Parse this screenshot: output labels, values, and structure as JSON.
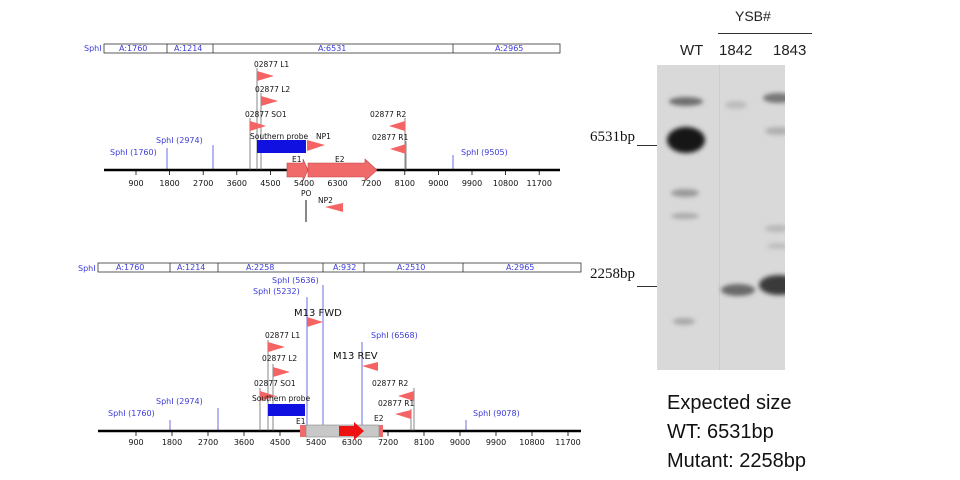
{
  "map1": {
    "restriction_label": "SphI",
    "segments": [
      "A:1760",
      "A:1214",
      "A:6531",
      "A:2965"
    ],
    "axis_ticks": [
      "900",
      "1800",
      "2700",
      "3600",
      "4500",
      "5400",
      "6300",
      "7200",
      "8100",
      "9000",
      "9900",
      "10800",
      "11700"
    ],
    "site_labels": [
      "SphI (1760)",
      "SphI (2974)",
      "SphI (9505)"
    ],
    "primers": [
      "02877 L1",
      "02877 L2",
      "02877 SO1",
      "02877 R2",
      "02877 R1",
      "NP1",
      "NP2",
      "PO"
    ],
    "features": [
      "Southern probe",
      "E1",
      "E2"
    ]
  },
  "map2": {
    "restriction_label": "SphI",
    "segments": [
      "A:1760",
      "A:1214",
      "A:2258",
      "A:932",
      "A:2510",
      "A:2965"
    ],
    "axis_ticks": [
      "900",
      "1800",
      "2700",
      "3600",
      "4500",
      "5400",
      "6300",
      "7200",
      "8100",
      "9000",
      "9900",
      "10800",
      "11700"
    ],
    "site_labels": [
      "SphI (1760)",
      "SphI (2974)",
      "SphI (5232)",
      "SphI (5636)",
      "SphI (6568)",
      "SphI (9078)"
    ],
    "primers": [
      "02877 L1",
      "02877 L2",
      "02877 SO1",
      "02877 R2",
      "02877 R1",
      "M13 FWD",
      "M13 REV"
    ],
    "features": [
      "Southern probe",
      "E1",
      "E2"
    ]
  },
  "gel": {
    "group_label": "YSB#",
    "lanes": [
      "WT",
      "1842",
      "1843"
    ],
    "markers": [
      "6531bp",
      "2258bp"
    ]
  },
  "expected": {
    "heading": "Expected size",
    "wt": "WT: 6531bp",
    "mutant": "Mutant: 2258bp"
  },
  "colors": {
    "map_line": "#000000",
    "site_blue": "#4a4ae0",
    "segment_text": "#3b3bd8",
    "probe": "#1010e0",
    "exon_red": "#f06a6a",
    "marker_red": "#f56464",
    "vector_gray": "#c8c8c8",
    "cassette_red": "#ee1111"
  }
}
